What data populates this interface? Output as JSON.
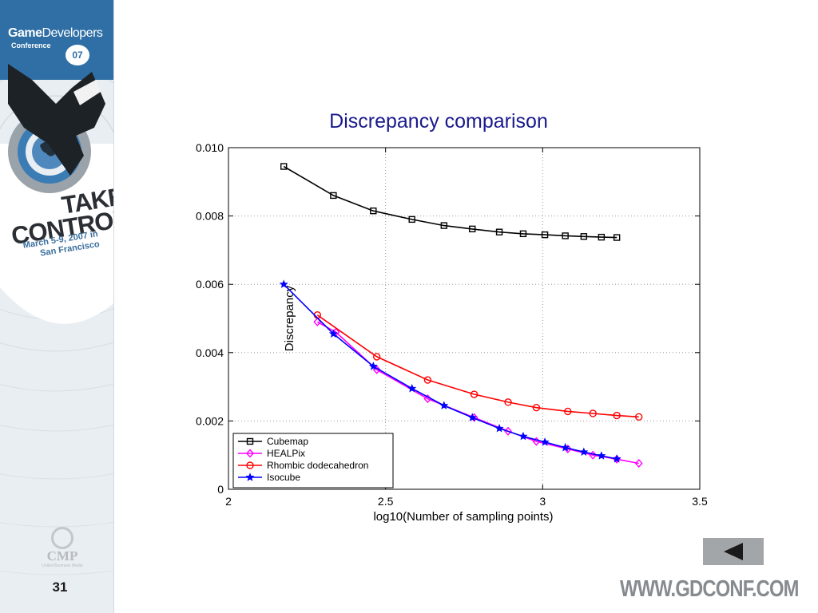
{
  "slide": {
    "logo_brand_1": "Game",
    "logo_brand_2": "Developers",
    "logo_sub": "Conference",
    "logo_year": "07",
    "take_line1": "TAKE",
    "take_line2": "CONTROL",
    "dates_line1": "March 5-9, 2007 in",
    "dates_line2": "San Francisco",
    "cmp_text": "CMP",
    "cmp_sub": "United Business Media",
    "slide_number": "31",
    "url": "WWW.GDCONF.COM",
    "back_button_icon": "back-triangle-icon",
    "colors": {
      "sidebar_blue": "#2f6fa5",
      "button_gray": "#a2a6a9"
    }
  },
  "chart_data": {
    "type": "line",
    "title": "Discrepancy comparison",
    "xlabel": "log10(Number of sampling points)",
    "ylabel": "Discrepancy",
    "xlim": [
      2,
      3.5
    ],
    "ylim": [
      0,
      0.01
    ],
    "xticks": [
      2,
      2.5,
      3,
      3.5
    ],
    "xtick_labels": [
      "2",
      "2.5",
      "3",
      "3.5"
    ],
    "yticks": [
      0,
      0.002,
      0.004,
      0.006,
      0.008,
      0.01
    ],
    "ytick_labels": [
      "0",
      "0.002",
      "0.004",
      "0.006",
      "0.008",
      "0.010"
    ],
    "grid": true,
    "legend_position": "bottom-left",
    "series": [
      {
        "name": "Cubemap",
        "color": "#000000",
        "marker": "square",
        "x": [
          2.176,
          2.334,
          2.461,
          2.584,
          2.686,
          2.776,
          2.862,
          2.938,
          3.007,
          3.072,
          3.131,
          3.187,
          3.236
        ],
        "y": [
          0.00945,
          0.0086,
          0.00815,
          0.0079,
          0.00772,
          0.00762,
          0.00753,
          0.00748,
          0.00745,
          0.00742,
          0.0074,
          0.00738,
          0.00737
        ]
      },
      {
        "name": "HEALPix",
        "color": "#ff00ff",
        "marker": "diamond",
        "x": [
          2.283,
          2.342,
          2.472,
          2.634,
          2.782,
          2.89,
          2.98,
          3.08,
          3.16,
          3.236,
          3.306
        ],
        "y": [
          0.0049,
          0.0046,
          0.0035,
          0.00265,
          0.0021,
          0.0017,
          0.0014,
          0.00118,
          0.001,
          0.00088,
          0.00076
        ]
      },
      {
        "name": "Rhombic dodecahedron",
        "color": "#ff0000",
        "marker": "circle",
        "x": [
          2.283,
          2.472,
          2.634,
          2.782,
          2.89,
          2.98,
          3.08,
          3.16,
          3.236,
          3.306
        ],
        "y": [
          0.0051,
          0.00388,
          0.0032,
          0.00278,
          0.00255,
          0.00239,
          0.00228,
          0.00222,
          0.00216,
          0.00212
        ]
      },
      {
        "name": "Isocube",
        "color": "#0000ff",
        "marker": "star",
        "x": [
          2.176,
          2.334,
          2.461,
          2.584,
          2.686,
          2.776,
          2.862,
          2.938,
          3.007,
          3.072,
          3.131,
          3.187,
          3.236
        ],
        "y": [
          0.006,
          0.00455,
          0.0036,
          0.00295,
          0.00245,
          0.0021,
          0.00178,
          0.00155,
          0.00138,
          0.00122,
          0.00109,
          0.00098,
          0.00089
        ]
      }
    ]
  }
}
